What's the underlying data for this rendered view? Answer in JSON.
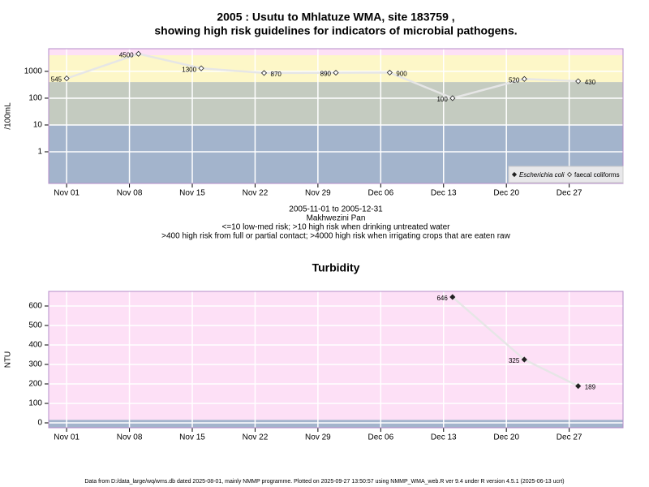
{
  "charts": [
    {
      "type": "scatter",
      "log_y": true,
      "title_lines": [
        "2005 : Usutu to Mhlatuze WMA, site 183759 ,",
        "showing high risk guidelines for indicators of microbial pathogens."
      ],
      "subtitle_lines": [
        "2005-11-01 to 2005-12-31",
        "Makhwezini Pan",
        "<=10 low-med risk; >10 high risk when drinking untreated water",
        ">400 high risk from full or partial contact; >4000 high risk when irrigating crops that are eaten raw"
      ],
      "ylabel": "/100mL",
      "xlim": [
        "2005-10-30",
        "2006-01-02"
      ],
      "xticks": [
        {
          "value": "2005-11-01",
          "label": "Nov 01"
        },
        {
          "value": "2005-11-08",
          "label": "Nov 08"
        },
        {
          "value": "2005-11-15",
          "label": "Nov 15"
        },
        {
          "value": "2005-11-22",
          "label": "Nov 22"
        },
        {
          "value": "2005-11-29",
          "label": "Nov 29"
        },
        {
          "value": "2005-12-06",
          "label": "Dec 06"
        },
        {
          "value": "2005-12-13",
          "label": "Dec 13"
        },
        {
          "value": "2005-12-20",
          "label": "Dec 20"
        },
        {
          "value": "2005-12-27",
          "label": "Dec 27"
        }
      ],
      "ylim": [
        0.066,
        7000
      ],
      "yticks": [
        1,
        10,
        100,
        1000
      ],
      "grid": true,
      "bands": [
        {
          "from": 0.066,
          "to": 10,
          "color": "#a3b4cc"
        },
        {
          "from": 10,
          "to": 400,
          "color": "#c4cbc0"
        },
        {
          "from": 400,
          "to": 4000,
          "color": "#fdf7c8"
        },
        {
          "from": 4000,
          "to": 7000,
          "color": "#fde0f6"
        }
      ],
      "legend": "bottom-right",
      "x": [
        "2005-11-01",
        "2005-11-09",
        "2005-11-16",
        "2005-11-23",
        "2005-12-01",
        "2005-12-07",
        "2005-12-14",
        "2005-12-22",
        "2005-12-28"
      ],
      "series": [
        {
          "name": "Escherichia coli",
          "marker": "filled",
          "color": "#222222",
          "values": [
            null,
            null,
            null,
            null,
            null,
            null,
            null,
            null,
            null
          ]
        },
        {
          "name": "faecal coliforms",
          "marker": "open",
          "color": "#222222",
          "values": [
            545,
            4500,
            1300,
            870,
            890,
            900,
            100,
            520,
            430
          ]
        }
      ]
    },
    {
      "type": "scatter",
      "log_y": false,
      "title_lines": [
        "Turbidity"
      ],
      "ylabel": "NTU",
      "xlim": [
        "2005-10-30",
        "2006-01-02"
      ],
      "xticks": [
        {
          "value": "2005-11-01",
          "label": "Nov 01"
        },
        {
          "value": "2005-11-08",
          "label": "Nov 08"
        },
        {
          "value": "2005-11-15",
          "label": "Nov 15"
        },
        {
          "value": "2005-11-22",
          "label": "Nov 22"
        },
        {
          "value": "2005-11-29",
          "label": "Nov 29"
        },
        {
          "value": "2005-12-06",
          "label": "Dec 06"
        },
        {
          "value": "2005-12-13",
          "label": "Dec 13"
        },
        {
          "value": "2005-12-20",
          "label": "Dec 20"
        },
        {
          "value": "2005-12-27",
          "label": "Dec 27"
        }
      ],
      "ylim": [
        -25,
        675
      ],
      "yticks": [
        0,
        100,
        200,
        300,
        400,
        500,
        600
      ],
      "grid": true,
      "bands": [
        {
          "from": -25,
          "to": 16,
          "color": "#a3b4cc"
        },
        {
          "from": 16,
          "to": 675,
          "color": "#fde0f6"
        }
      ],
      "x": [
        "2005-12-14",
        "2005-12-22",
        "2005-12-28"
      ],
      "series": [
        {
          "name": "Turbidity",
          "marker": "filled",
          "color": "#222222",
          "values": [
            646,
            325,
            189
          ]
        }
      ]
    }
  ],
  "footer": "Data from D:/data_large/wq/wms.db dated 2025-08-01, mainly NMMP programme. Plotted on 2025-09-27 13:50:57 using NMMP_WMA_web.R ver 9.4 under R version 4.5.1 (2025-06-13 ucrt)"
}
